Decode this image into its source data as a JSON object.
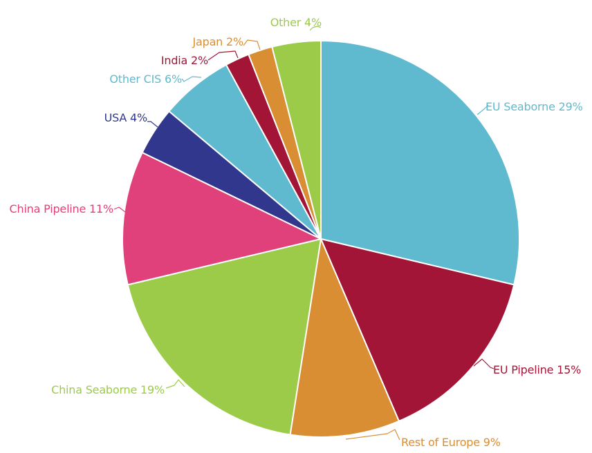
{
  "chart_data": {
    "type": "pie",
    "title": "",
    "start_angle_deg": 0,
    "direction": "clockwise",
    "legend": "none",
    "slices": [
      {
        "label": "EU Seaborne 29%",
        "name": "EU Seaborne",
        "value": 29,
        "color": "#5fbacf"
      },
      {
        "label": "EU Pipeline 15%",
        "name": "EU Pipeline",
        "value": 15,
        "color": "#a21537"
      },
      {
        "label": "Rest of Europe 9%",
        "name": "Rest of Europe",
        "value": 9,
        "color": "#d98e34"
      },
      {
        "label": "China Seaborne 19%",
        "name": "China Seaborne",
        "value": 19,
        "color": "#9ccb4a"
      },
      {
        "label": "China Pipeline 11%",
        "name": "China Pipeline",
        "value": 11,
        "color": "#e0417a"
      },
      {
        "label": "USA 4%",
        "name": "USA",
        "value": 4,
        "color": "#30378c"
      },
      {
        "label": "Other CIS 6%",
        "name": "Other CIS",
        "value": 6,
        "color": "#5fbacf"
      },
      {
        "label": "India 2%",
        "name": "India",
        "value": 2,
        "color": "#a21537"
      },
      {
        "label": "Japan 2%",
        "name": "Japan",
        "value": 2,
        "color": "#d98e34"
      },
      {
        "label": "Other 4%",
        "name": "Other",
        "value": 4,
        "color": "#9ccb4a"
      }
    ]
  }
}
